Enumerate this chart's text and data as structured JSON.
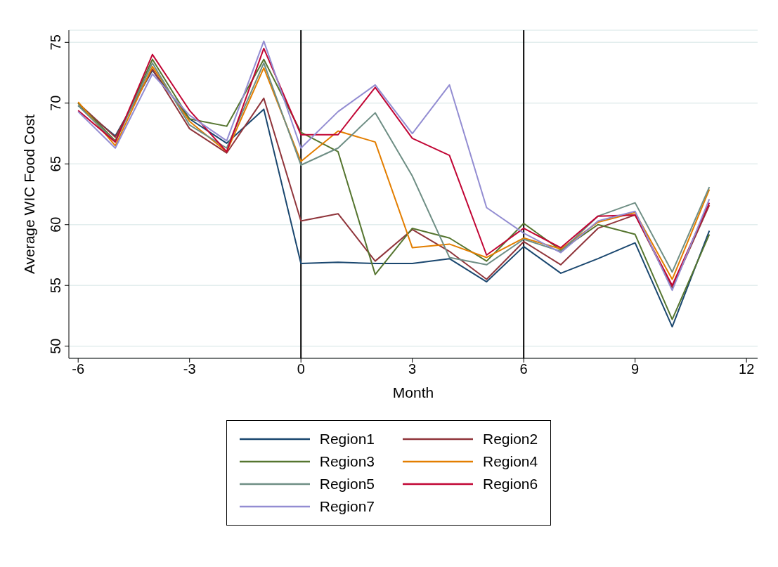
{
  "chart_data": {
    "type": "line",
    "xlabel": "Month",
    "ylabel": "Average WIC Food Cost",
    "x": [
      -6,
      -5,
      -4,
      -3,
      -2,
      -1,
      0,
      1,
      2,
      3,
      4,
      5,
      6,
      7,
      8,
      9,
      10,
      11
    ],
    "series": [
      {
        "name": "Region1",
        "color": "#1a476f",
        "values": [
          69.8,
          67.3,
          72.7,
          68.7,
          66.7,
          69.5,
          56.8,
          56.9,
          56.8,
          56.8,
          57.2,
          55.3,
          58.2,
          56.0,
          57.2,
          58.5,
          51.6,
          59.5
        ]
      },
      {
        "name": "Region2",
        "color": "#90353b",
        "values": [
          70.0,
          67.2,
          72.8,
          67.9,
          65.9,
          70.4,
          60.3,
          60.9,
          57.0,
          59.6,
          57.8,
          55.5,
          58.6,
          56.7,
          59.7,
          60.8,
          54.8,
          61.6
        ]
      },
      {
        "name": "Region3",
        "color": "#55752f",
        "values": [
          70.0,
          66.9,
          73.6,
          68.7,
          68.1,
          73.6,
          67.6,
          66.0,
          55.9,
          59.7,
          58.9,
          57.0,
          60.1,
          57.9,
          60.0,
          59.2,
          52.2,
          59.2
        ]
      },
      {
        "name": "Region4",
        "color": "#e37e00",
        "values": [
          70.1,
          66.5,
          73.0,
          68.5,
          66.0,
          72.9,
          65.2,
          67.7,
          66.8,
          58.1,
          58.4,
          57.3,
          58.9,
          58.0,
          60.2,
          61.0,
          55.5,
          62.9
        ]
      },
      {
        "name": "Region5",
        "color": "#6e8e84",
        "values": [
          69.8,
          66.8,
          73.3,
          68.2,
          66.3,
          73.3,
          64.9,
          66.3,
          69.2,
          64.0,
          57.3,
          56.7,
          58.8,
          57.8,
          60.7,
          61.8,
          56.1,
          63.1
        ]
      },
      {
        "name": "Region6",
        "color": "#c10534",
        "values": [
          69.4,
          66.8,
          74.0,
          69.4,
          66.0,
          74.5,
          67.4,
          67.4,
          71.3,
          67.1,
          65.7,
          57.5,
          59.7,
          58.1,
          60.7,
          60.8,
          55.0,
          61.8
        ]
      },
      {
        "name": "Region7",
        "color": "#938dd2",
        "values": [
          69.3,
          66.3,
          72.4,
          69.0,
          66.9,
          75.1,
          66.3,
          69.3,
          71.5,
          67.5,
          71.5,
          61.4,
          59.3,
          57.7,
          60.3,
          61.1,
          54.6,
          62.1
        ]
      }
    ],
    "xlim": [
      -6.25,
      12.3
    ],
    "xticks": [
      -6,
      -3,
      0,
      3,
      6,
      9,
      12
    ],
    "ylim": [
      49,
      76
    ],
    "yticks": [
      50,
      55,
      60,
      65,
      70,
      75
    ],
    "grid": "y",
    "legend": "bottom",
    "line_style": "solid",
    "marker": "none",
    "ref_lines": [
      {
        "axis": "x",
        "value": 0,
        "color": "#000000"
      },
      {
        "axis": "x",
        "value": 6,
        "color": "#000000"
      }
    ]
  }
}
